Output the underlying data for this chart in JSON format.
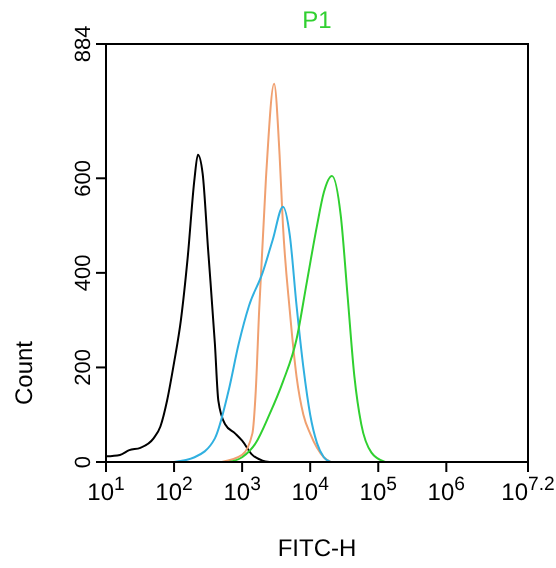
{
  "chart_data": {
    "type": "line",
    "xlabel": "FITC-H",
    "ylabel": "Count",
    "log": "x",
    "legend": "top",
    "line_style": "solid",
    "marker": "none",
    "xlim": [
      10,
      15848932
    ],
    "xticks": [
      {
        "value": 10,
        "label": "10$^{1}$"
      },
      {
        "value": 100,
        "label": "10$^{2}$"
      },
      {
        "value": 1000,
        "label": "10$^{3}$"
      },
      {
        "value": 10000,
        "label": "10$^{4}$"
      },
      {
        "value": 100000,
        "label": "10$^{5}$"
      },
      {
        "value": 1000000,
        "label": "10$^{6}$"
      },
      {
        "value": 15848932,
        "label": "10$^{7.2}$"
      }
    ],
    "ylim": [
      0,
      884
    ],
    "yticks": [
      0,
      200,
      400,
      600,
      884
    ],
    "series": [
      {
        "color": "#000000",
        "x": [
          10,
          16,
          22,
          32,
          50,
          63,
          79,
          100,
          126,
          158,
          200,
          224,
          263,
          316,
          398,
          447,
          562,
          794,
          1000,
          1413,
          1995,
          2512
        ],
        "values": [
          12,
          15,
          25,
          30,
          50,
          75,
          130,
          210,
          300,
          430,
          600,
          650,
          610,
          450,
          250,
          130,
          80,
          60,
          45,
          15,
          3,
          0
        ]
      },
      {
        "color": "#f0a070",
        "x": [
          501,
          1000,
          1413,
          1585,
          1778,
          2239,
          2951,
          3548,
          3981,
          5012,
          6310,
          7943,
          10000,
          12589,
          15849,
          19953
        ],
        "values": [
          0,
          15,
          60,
          150,
          320,
          600,
          800,
          650,
          500,
          320,
          180,
          100,
          60,
          30,
          10,
          0
        ]
      },
      {
        "color": "#30b0e0",
        "x": [
          100,
          200,
          398,
          631,
          891,
          1259,
          1995,
          2818,
          3981,
          5012,
          6310,
          7943,
          10000,
          12589,
          15849,
          19953
        ],
        "values": [
          0,
          10,
          50,
          150,
          250,
          330,
          400,
          470,
          540,
          480,
          330,
          200,
          100,
          40,
          10,
          0
        ]
      },
      {
        "name": "P1",
        "color": "#30d030",
        "x": [
          631,
          1000,
          1585,
          2512,
          3981,
          6310,
          8913,
          12589,
          15849,
          20893,
          28184,
          35481,
          44668,
          56234,
          79433,
          125893
        ],
        "values": [
          0,
          10,
          40,
          100,
          170,
          260,
          380,
          500,
          570,
          605,
          520,
          350,
          180,
          80,
          20,
          0
        ]
      }
    ]
  }
}
